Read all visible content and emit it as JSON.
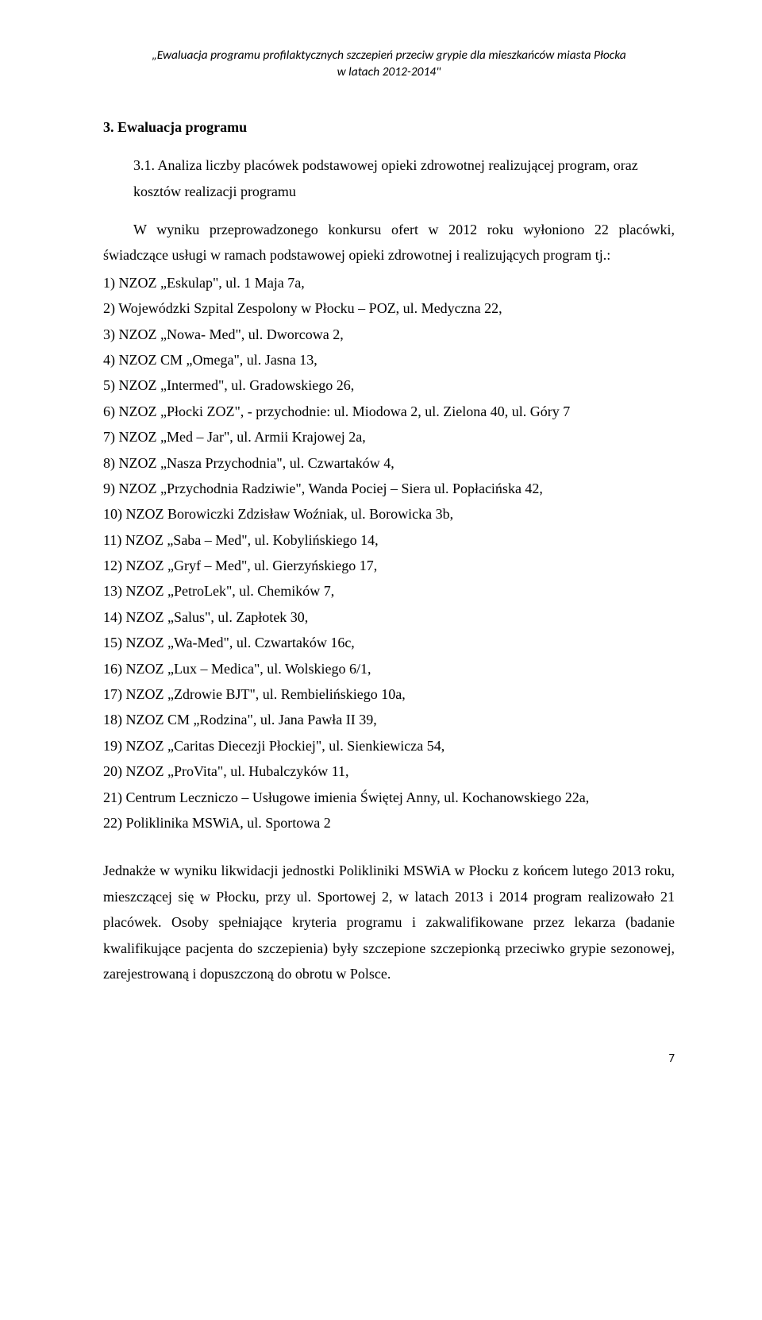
{
  "header": {
    "line1": "„Ewaluacja programu profilaktycznych szczepień przeciw grypie dla mieszkańców miasta Płocka",
    "line2": "w latach 2012-2014\""
  },
  "section": {
    "heading": "3. Ewaluacja programu",
    "subheading": "3.1. Analiza liczby placówek podstawowej opieki zdrowotnej realizującej program, oraz kosztów realizacji programu"
  },
  "intro": "W wyniku przeprowadzonego konkursu ofert w 2012 roku wyłoniono 22 placówki, świadczące usługi w ramach podstawowej opieki zdrowotnej i realizujących program tj.:",
  "items": [
    "1) NZOZ „Eskulap\", ul. 1 Maja 7a,",
    "2) Wojewódzki Szpital Zespolony w Płocku – POZ, ul. Medyczna 22,",
    "3) NZOZ „Nowa- Med\", ul. Dworcowa 2,",
    "4) NZOZ CM „Omega\", ul. Jasna 13,",
    "5) NZOZ „Intermed\", ul. Gradowskiego 26,",
    "6) NZOZ „Płocki ZOZ\", - przychodnie:  ul. Miodowa 2, ul. Zielona 40, ul. Góry 7",
    "7) NZOZ „Med – Jar\", ul. Armii Krajowej 2a,",
    "8) NZOZ „Nasza Przychodnia\", ul. Czwartaków 4,",
    "9) NZOZ „Przychodnia Radziwie\", Wanda Pociej – Siera ul. Popłacińska 42,",
    "10) NZOZ Borowiczki Zdzisław Woźniak, ul. Borowicka 3b,",
    "11) NZOZ „Saba – Med\", ul. Kobylińskiego 14,",
    "12) NZOZ „Gryf – Med\", ul. Gierzyńskiego 17,",
    "13) NZOZ „PetroLek\", ul. Chemików 7,",
    "14) NZOZ „Salus\", ul. Zapłotek 30,",
    "15) NZOZ „Wa-Med\", ul. Czwartaków 16c,",
    "16) NZOZ „Lux – Medica\", ul. Wolskiego 6/1,",
    "17) NZOZ „Zdrowie BJT\", ul. Rembielińskiego 10a,",
    "18) NZOZ CM „Rodzina\", ul. Jana Pawła II 39,",
    "19) NZOZ „Caritas Diecezji Płockiej\", ul. Sienkiewicza 54,",
    "20) NZOZ „ProVita\", ul. Hubalczyków 11,",
    "21) Centrum Leczniczo – Usługowe imienia Świętej Anny, ul. Kochanowskiego 22a,",
    "22) Poliklinika MSWiA, ul. Sportowa 2"
  ],
  "closing": "Jednakże w wyniku likwidacji jednostki Polikliniki MSWiA w Płocku z końcem lutego 2013 roku, mieszczącej się w Płocku, przy ul. Sportowej 2, w latach 2013 i 2014 program realizowało 21 placówek. Osoby spełniające kryteria programu i zakwalifikowane przez lekarza (badanie kwalifikujące pacjenta do szczepienia) były szczepione szczepionką przeciwko grypie sezonowej, zarejestrowaną i dopuszczoną do obrotu w Polsce.",
  "pageNumber": "7"
}
